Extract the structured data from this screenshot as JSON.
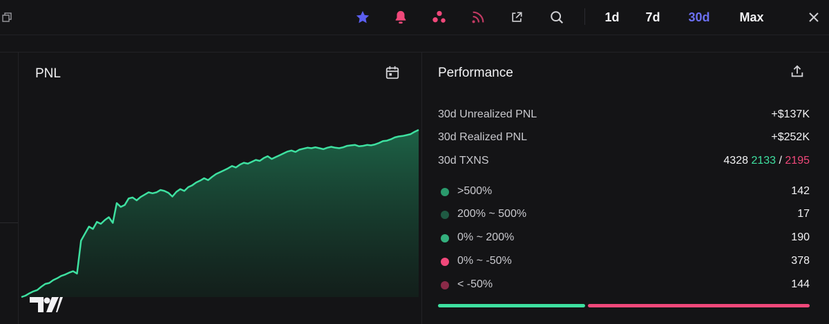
{
  "toolbar": {
    "timeframes": [
      "1d",
      "7d",
      "30d",
      "Max"
    ],
    "active_timeframe": "30d",
    "icons": [
      "copy-icon",
      "star-icon",
      "bell-icon",
      "bubble-map-icon",
      "rss-icon",
      "external-link-icon",
      "search-icon",
      "close-icon"
    ],
    "colors": {
      "star": "#5b5ff0",
      "bell": "#f0487a",
      "bubbles": "#f0487a",
      "rss": "#c23a63"
    }
  },
  "pnl": {
    "title": "PNL",
    "chart_data": {
      "type": "area",
      "x": [
        0,
        1,
        2,
        3,
        4,
        5,
        6,
        7,
        8,
        9,
        10,
        11,
        12,
        13,
        14,
        15,
        16,
        17,
        18,
        19,
        20,
        21,
        22,
        23,
        24,
        25,
        26,
        27,
        28,
        29,
        30,
        31,
        32,
        33,
        34,
        35,
        36,
        37,
        38,
        39,
        40,
        41,
        42,
        43,
        44,
        45,
        46,
        47,
        48,
        49,
        50,
        51,
        52,
        53,
        54,
        55,
        56,
        57,
        58,
        59,
        60,
        61,
        62,
        63,
        64,
        65,
        66,
        67,
        68,
        69,
        70,
        71,
        72,
        73,
        74,
        75,
        76,
        77,
        78,
        79,
        80,
        81,
        82,
        83,
        84,
        85,
        86,
        87,
        88,
        89,
        90,
        91,
        92,
        93,
        94,
        95,
        96,
        97,
        98,
        99,
        100
      ],
      "values": [
        0,
        3,
        8,
        12,
        15,
        22,
        28,
        30,
        36,
        40,
        45,
        48,
        52,
        55,
        50,
        120,
        135,
        150,
        145,
        160,
        156,
        164,
        170,
        158,
        200,
        192,
        196,
        210,
        212,
        206,
        213,
        218,
        223,
        221,
        223,
        228,
        226,
        222,
        214,
        224,
        230,
        226,
        234,
        238,
        244,
        248,
        253,
        249,
        256,
        262,
        266,
        270,
        274,
        279,
        276,
        282,
        286,
        284,
        288,
        292,
        290,
        296,
        300,
        294,
        298,
        302,
        306,
        310,
        312,
        309,
        314,
        316,
        318,
        317,
        319,
        317,
        315,
        318,
        320,
        318,
        317,
        319,
        322,
        323,
        324,
        321,
        322,
        324,
        323,
        325,
        328,
        332,
        333,
        336,
        340,
        342,
        343,
        345,
        347,
        352,
        356
      ],
      "color": "#3ee0a0"
    },
    "watermark": "TradingView"
  },
  "performance": {
    "title": "Performance",
    "unrealized": {
      "label": "30d Unrealized PNL",
      "value": "+$137K"
    },
    "realized": {
      "label": "30d Realized PNL",
      "value": "+$252K"
    },
    "txns": {
      "label": "30d TXNS",
      "total": "4328",
      "buys": "2133",
      "separator": "/",
      "sells": "2195"
    },
    "distribution": [
      {
        "label": ">500%",
        "value": "142",
        "color": "#2a9a6c"
      },
      {
        "label": "200% ~ 500%",
        "value": "17",
        "color": "#1f5a43"
      },
      {
        "label": "0% ~ 200%",
        "value": "190",
        "color": "#34b07e"
      },
      {
        "label": "0% ~ -50%",
        "value": "378",
        "color": "#f0487a"
      },
      {
        "label": "< -50%",
        "value": "144",
        "color": "#8a2a48"
      }
    ],
    "ratio_bar": {
      "positive_fraction": 0.4,
      "positive_color": "#3ee0a0",
      "negative_color": "#f0487a"
    }
  }
}
